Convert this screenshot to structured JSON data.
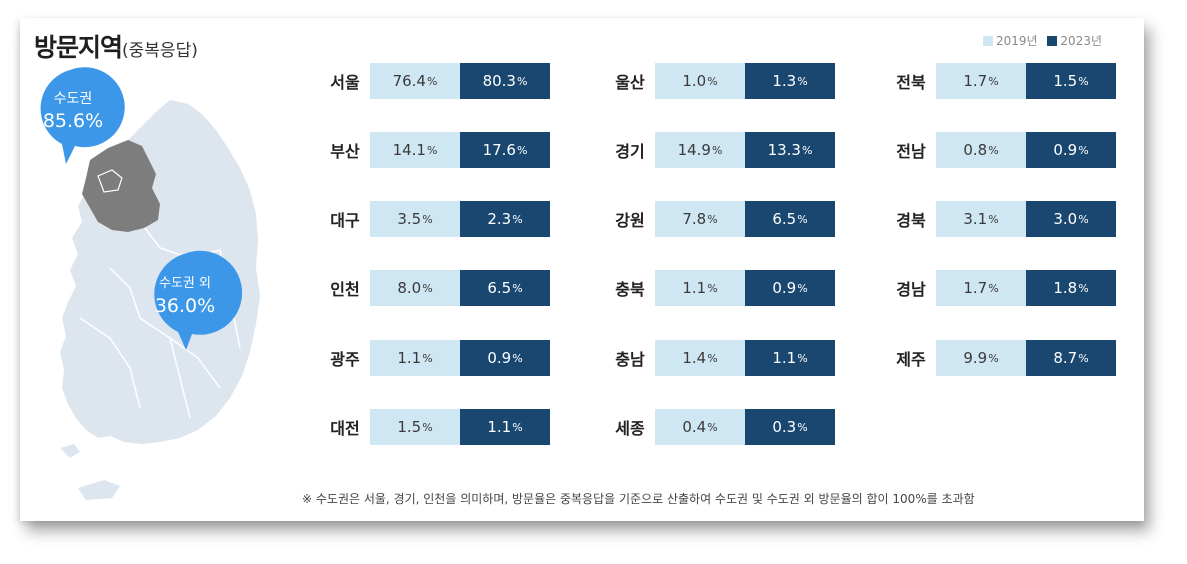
{
  "title": {
    "main": "방문지역",
    "sub": "(중복응답)"
  },
  "legend": [
    {
      "label": "2019년",
      "color": "#cfe6f3"
    },
    {
      "label": "2023년",
      "color": "#19476f"
    }
  ],
  "map": {
    "capital": {
      "label": "수도권",
      "value": "85.6%"
    },
    "non_capital": {
      "label": "수도권 외",
      "value": "36.0%"
    },
    "colors": {
      "land": "#dde6ee",
      "capital": "#7d7d7d",
      "bubble": "#3c97e8"
    }
  },
  "chart_data": {
    "type": "table",
    "title": "방문지역(중복응답)",
    "unit": "%",
    "series": [
      {
        "name": "2019년"
      },
      {
        "name": "2023년"
      }
    ],
    "rows": [
      {
        "region": "서울",
        "v2019": "76.4",
        "v2023": "80.3"
      },
      {
        "region": "부산",
        "v2019": "14.1",
        "v2023": "17.6"
      },
      {
        "region": "대구",
        "v2019": "3.5",
        "v2023": "2.3"
      },
      {
        "region": "인천",
        "v2019": "8.0",
        "v2023": "6.5"
      },
      {
        "region": "광주",
        "v2019": "1.1",
        "v2023": "0.9"
      },
      {
        "region": "대전",
        "v2019": "1.5",
        "v2023": "1.1"
      },
      {
        "region": "울산",
        "v2019": "1.0",
        "v2023": "1.3"
      },
      {
        "region": "경기",
        "v2019": "14.9",
        "v2023": "13.3"
      },
      {
        "region": "강원",
        "v2019": "7.8",
        "v2023": "6.5"
      },
      {
        "region": "충북",
        "v2019": "1.1",
        "v2023": "0.9"
      },
      {
        "region": "충남",
        "v2019": "1.4",
        "v2023": "1.1"
      },
      {
        "region": "세종",
        "v2019": "0.4",
        "v2023": "0.3"
      },
      {
        "region": "전북",
        "v2019": "1.7",
        "v2023": "1.5"
      },
      {
        "region": "전남",
        "v2019": "0.8",
        "v2023": "0.9"
      },
      {
        "region": "경북",
        "v2019": "3.1",
        "v2023": "3.0"
      },
      {
        "region": "경남",
        "v2019": "1.7",
        "v2023": "1.8"
      },
      {
        "region": "제주",
        "v2019": "9.9",
        "v2023": "8.7"
      }
    ]
  },
  "note": "※ 수도권은 서울, 경기, 인천을 의미하며, 방문율은 중복응답을 기준으로 산출하여 수도권 및 수도권 외 방문율의 합이 100%를 초과함"
}
